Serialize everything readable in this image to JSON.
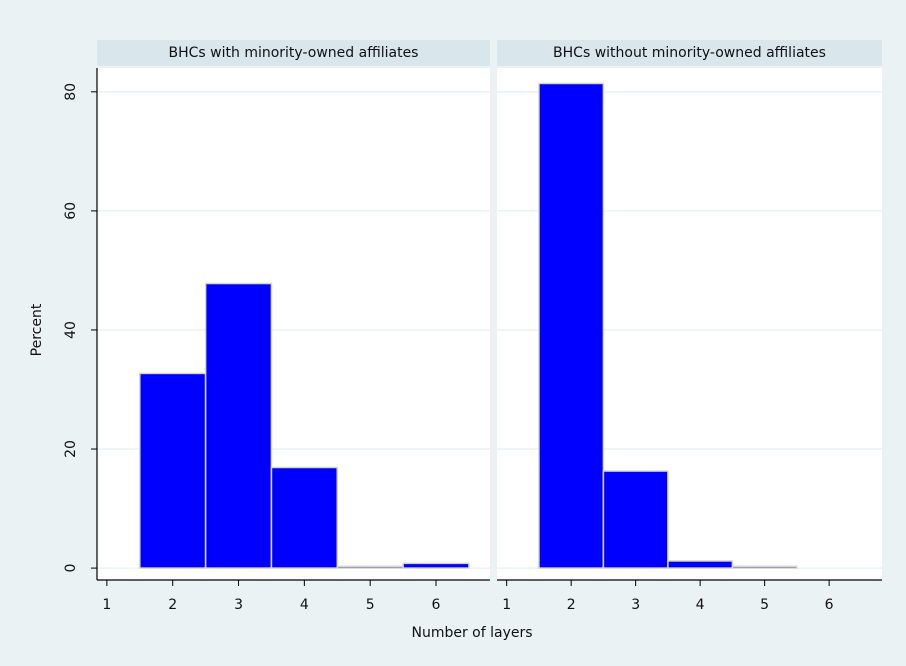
{
  "chart_data": {
    "type": "histogram",
    "y_label": "Percent",
    "x_label": "Number of layers",
    "color": "#0000ff",
    "grid": true,
    "ylim": [
      -2,
      84
    ],
    "yticks": [
      0,
      20,
      40,
      60,
      80
    ],
    "xlim": [
      0.85,
      6.82
    ],
    "xticks": [
      1,
      2,
      3,
      4,
      5,
      6
    ],
    "panels": [
      {
        "title": "BHCs with minority-owned affiliates",
        "bins": [
          1.5,
          2.5,
          3.5,
          4.5,
          5.5,
          6.5
        ],
        "values": [
          32.7,
          47.8,
          16.9,
          0.3,
          0.8
        ]
      },
      {
        "title": "BHCs without minority-owned affiliates",
        "bins": [
          1.5,
          2.5,
          3.5,
          4.5,
          5.5,
          6.5
        ],
        "values": [
          81.4,
          16.3,
          1.2,
          0.3,
          0
        ]
      }
    ]
  }
}
